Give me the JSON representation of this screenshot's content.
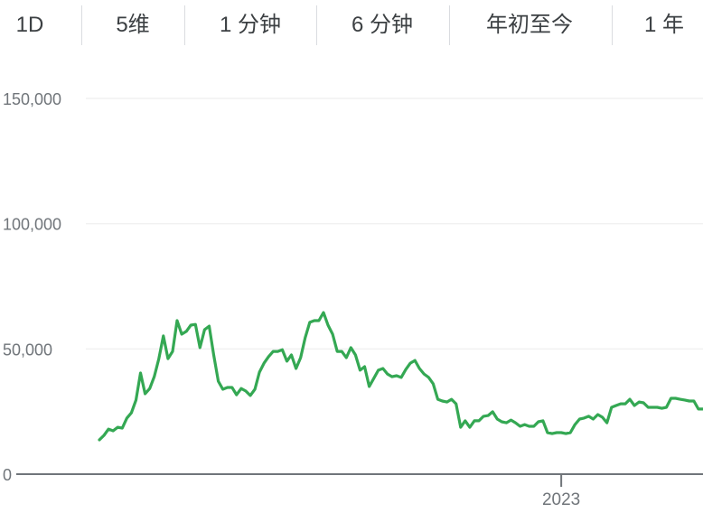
{
  "tabs": [
    {
      "label": "1D"
    },
    {
      "label": "5维"
    },
    {
      "label": "1 分钟"
    },
    {
      "label": "6 分钟"
    },
    {
      "label": "年初至今"
    },
    {
      "label": "1 年"
    }
  ],
  "colors": {
    "line": "#34a853",
    "grid": "#f1f1f1",
    "axis": "#70757a",
    "text": "#3c4043"
  },
  "chart_data": {
    "type": "line",
    "grid": true,
    "ylim": [
      0,
      150000
    ],
    "y_ticks": [
      {
        "value": 0,
        "label": "0"
      },
      {
        "value": 50000,
        "label": "50,000"
      },
      {
        "value": 100000,
        "label": "100,000"
      },
      {
        "value": 150000,
        "label": "150,000"
      }
    ],
    "x_ticks": [
      {
        "index": 101,
        "label": "2023"
      }
    ],
    "series": [
      {
        "values": [
          13700,
          15500,
          18000,
          17300,
          18700,
          18400,
          22400,
          24500,
          29600,
          40400,
          32100,
          34200,
          38900,
          46100,
          55200,
          46100,
          49000,
          61300,
          55900,
          57000,
          59500,
          59800,
          50500,
          57700,
          59100,
          47600,
          37100,
          33900,
          34600,
          34600,
          31700,
          34200,
          33200,
          31400,
          33900,
          40700,
          44300,
          46900,
          49000,
          49000,
          49700,
          45100,
          47600,
          42200,
          46500,
          54400,
          60600,
          61300,
          61300,
          64500,
          59500,
          55900,
          49000,
          49000,
          46500,
          50500,
          47600,
          41500,
          42900,
          35000,
          38200,
          41500,
          42200,
          40000,
          38900,
          39300,
          38600,
          41800,
          44300,
          45400,
          42200,
          40000,
          38600,
          36100,
          29900,
          29200,
          28800,
          29900,
          28100,
          18700,
          21300,
          18700,
          21300,
          21300,
          23100,
          23400,
          24900,
          22000,
          20900,
          20500,
          21600,
          20500,
          19100,
          19800,
          19100,
          19100,
          20900,
          21300,
          16600,
          16200,
          16600,
          16600,
          16200,
          16600,
          19800,
          22000,
          22400,
          23100,
          22000,
          23800,
          22700,
          20500,
          26700,
          27400,
          28100,
          28100,
          29900,
          27400,
          28800,
          28500,
          26700,
          26700,
          26700,
          26300,
          26700,
          30300,
          30300,
          29900,
          29600,
          29200,
          29200,
          26000,
          26000
        ]
      }
    ]
  }
}
